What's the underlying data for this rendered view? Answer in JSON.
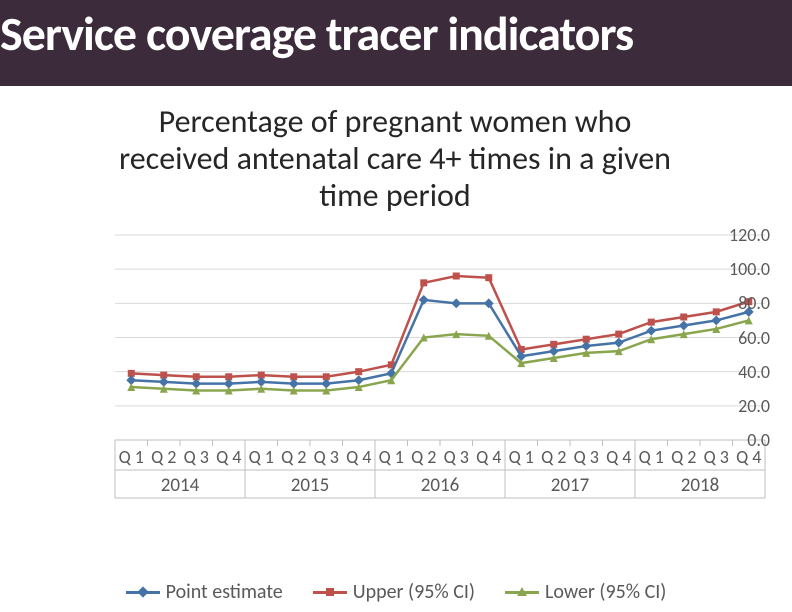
{
  "header": {
    "title": "Service coverage tracer indicators"
  },
  "chart": {
    "type": "line",
    "title": "Percentage of pregnant women who received antenatal care 4+ times in a given time period",
    "ylim": [
      0,
      120
    ],
    "ytick_step": 20,
    "yticks": [
      "0.0",
      "20.0",
      "40.0",
      "60.0",
      "80.0",
      "100.0",
      "120.0"
    ],
    "grid_color": "#d9d9d9",
    "axis_color": "#bfbfbf",
    "background_color": "#ffffff",
    "label_fontsize": 18,
    "title_fontsize": 32,
    "years": [
      "2014",
      "2015",
      "2016",
      "2017",
      "2018"
    ],
    "quarters_per_year": [
      "Q 1",
      "Q 2",
      "Q 3",
      "Q 4"
    ],
    "series": [
      {
        "name": "Point estimate",
        "color": "#4573a7",
        "marker": "diamond",
        "values": [
          35,
          34,
          33,
          33,
          34,
          33,
          33,
          35,
          39,
          82,
          80,
          80,
          49,
          52,
          55,
          57,
          64,
          67,
          70,
          75
        ]
      },
      {
        "name": "Upper (95% CI)",
        "color": "#be514b",
        "marker": "square",
        "values": [
          39,
          38,
          37,
          37,
          38,
          37,
          37,
          40,
          44,
          92,
          96,
          95,
          53,
          56,
          59,
          62,
          69,
          72,
          75,
          81
        ]
      },
      {
        "name": "Lower (95% CI)",
        "color": "#89a54e",
        "marker": "triangle",
        "values": [
          31,
          30,
          29,
          29,
          30,
          29,
          29,
          31,
          35,
          60,
          62,
          61,
          45,
          48,
          51,
          52,
          59,
          62,
          65,
          70
        ]
      }
    ]
  },
  "legend": {
    "items": [
      {
        "label": "Point estimate",
        "color": "#4573a7"
      },
      {
        "label": "Upper (95% CI)",
        "color": "#be514b"
      },
      {
        "label": "Lower (95% CI)",
        "color": "#89a54e"
      }
    ]
  },
  "colors": {
    "header_bg": "#3b2b3b",
    "header_text": "#ffffff",
    "text": "#595959"
  }
}
